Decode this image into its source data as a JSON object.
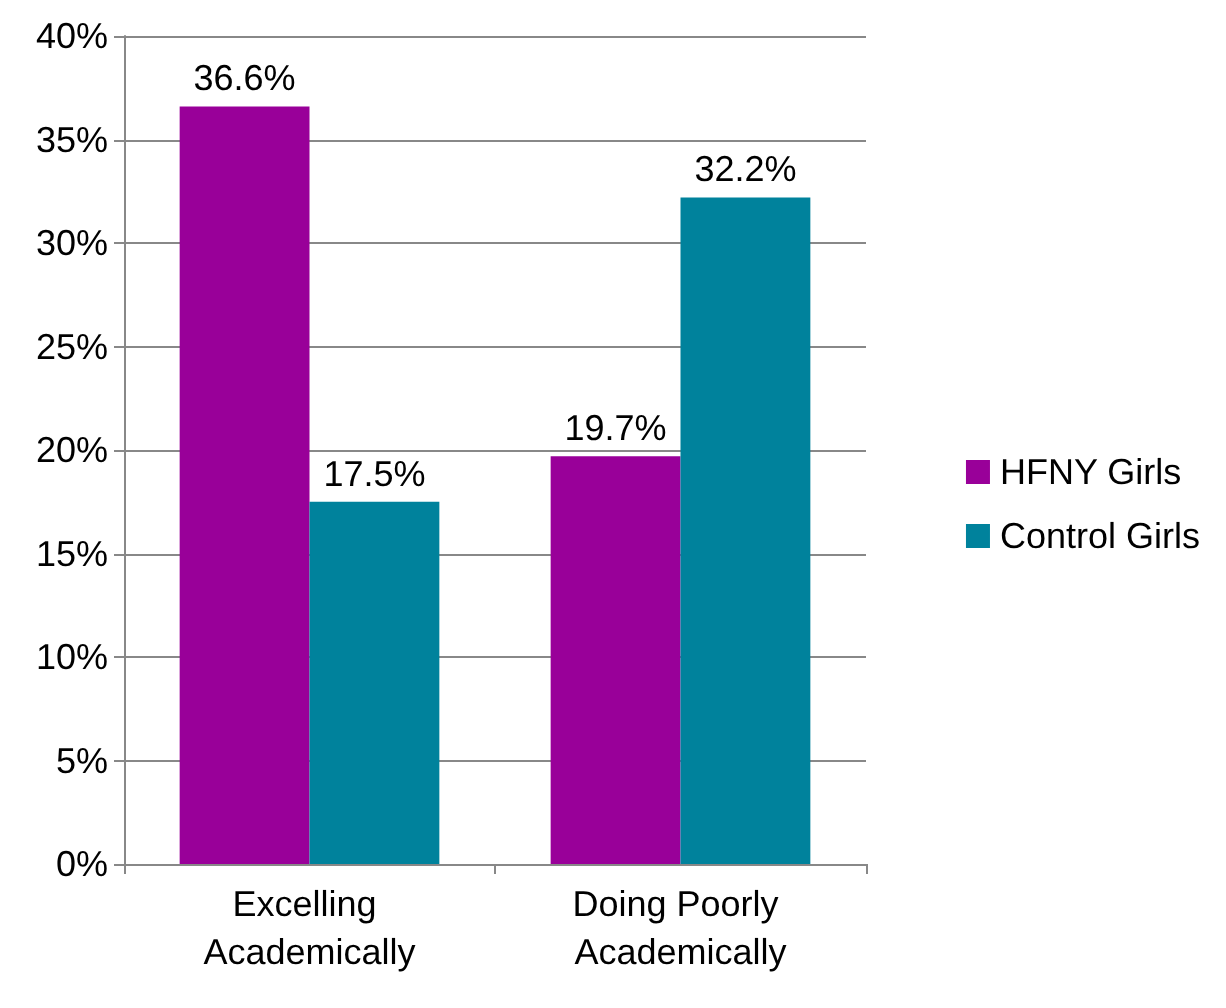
{
  "chart_data": {
    "type": "bar",
    "categories": [
      "Excelling Academically",
      "Doing Poorly Academically"
    ],
    "series": [
      {
        "name": "HFNY Girls",
        "color": "#990099",
        "values": [
          36.6,
          19.7
        ],
        "value_labels": [
          "36.6%",
          "19.7%"
        ]
      },
      {
        "name": "Control Girls",
        "color": "#00829c",
        "values": [
          17.5,
          32.2
        ],
        "value_labels": [
          "17.5%",
          "32.2%"
        ]
      }
    ],
    "ylim": [
      0,
      40
    ],
    "yticks": [
      {
        "value": 0,
        "label": "0%"
      },
      {
        "value": 5,
        "label": "5%"
      },
      {
        "value": 10,
        "label": "10%"
      },
      {
        "value": 15,
        "label": "15%"
      },
      {
        "value": 20,
        "label": "20%"
      },
      {
        "value": 25,
        "label": "25%"
      },
      {
        "value": 30,
        "label": "30%"
      },
      {
        "value": 35,
        "label": "35%"
      },
      {
        "value": 40,
        "label": "40%"
      }
    ],
    "grid": "y",
    "legend": "right"
  }
}
